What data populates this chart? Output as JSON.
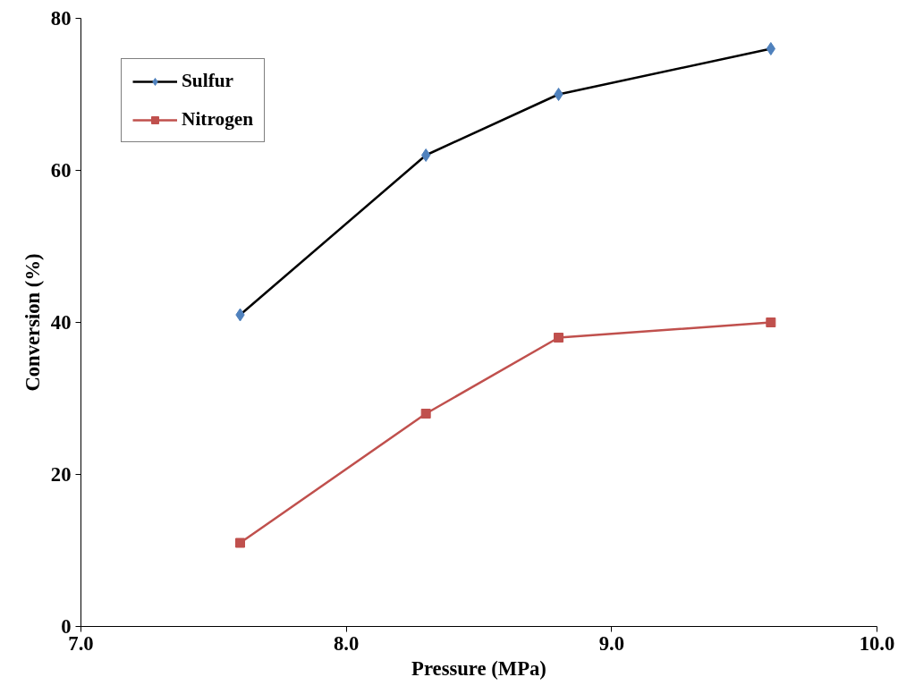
{
  "chart_data": {
    "type": "line",
    "xlabel": "Pressure (MPa)",
    "ylabel": "Conversion (%)",
    "x": [
      7.6,
      8.3,
      8.8,
      9.6
    ],
    "series": [
      {
        "name": "Sulfur",
        "color": "#000000",
        "colors": [
          "#4f81bd",
          "#4f81bd",
          "#4f81bd",
          "#4f81bd"
        ],
        "marker": "diamond",
        "values": [
          41,
          62,
          70,
          76
        ]
      },
      {
        "name": "Nitrogen",
        "color": "#c0504d",
        "marker": "square",
        "values": [
          11,
          28,
          38,
          40
        ]
      }
    ],
    "xlim": [
      7,
      10
    ],
    "xticks": [
      {
        "value": 7,
        "label": "7.0"
      },
      {
        "value": 8,
        "label": "8.0"
      },
      {
        "value": 9,
        "label": "9.0"
      },
      {
        "value": 10,
        "label": "10.0"
      }
    ],
    "ylim": [
      0,
      80
    ],
    "yticks": [
      0,
      20,
      40,
      60,
      80
    ],
    "grid": false,
    "legend": "top left",
    "line_style": "solid"
  }
}
